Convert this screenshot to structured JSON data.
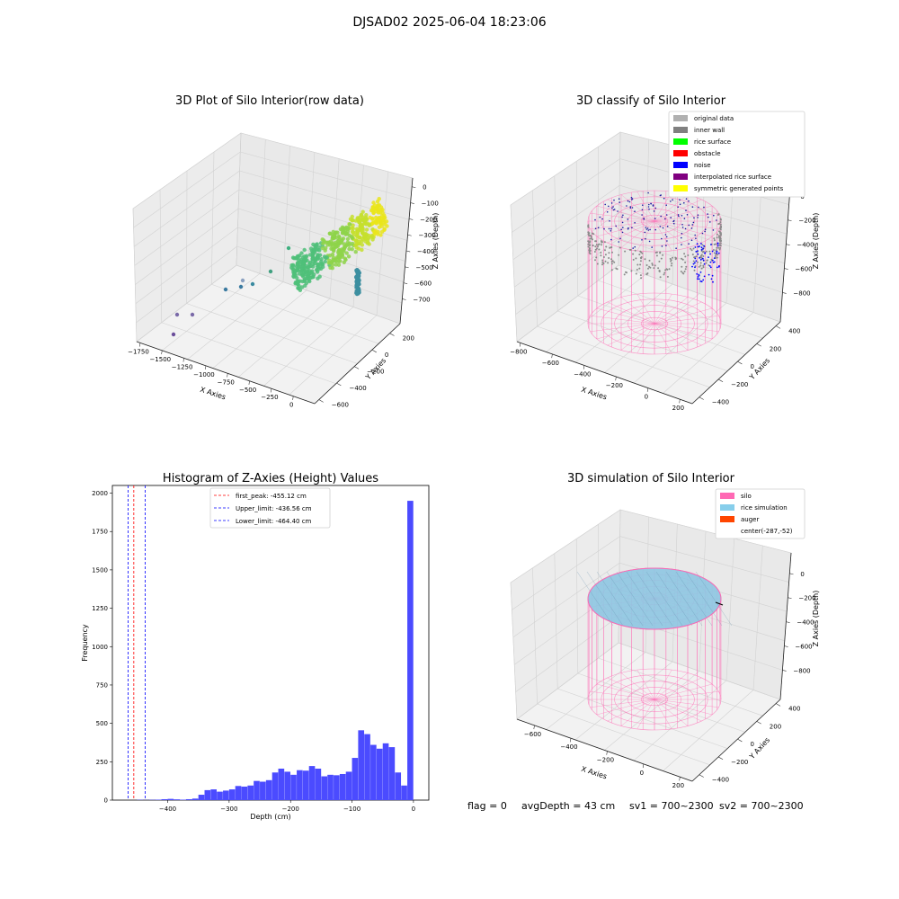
{
  "suptitle": "DJSAD02 2025-06-04 18:23:06",
  "panel1": {
    "title": "3D Plot of Silo Interior(row data)",
    "xlabel": "X Axies",
    "ylabel": "Y Axies",
    "zlabel": "Z Axies (Depth)",
    "xticks": [
      "−1750",
      "−1500",
      "−1250",
      "−1000",
      "−750",
      "−500",
      "−250",
      "0"
    ],
    "yticks": [
      "−600",
      "−400",
      "−200",
      "0",
      "200"
    ],
    "zticks": [
      "0",
      "−100",
      "−200",
      "−300",
      "−400",
      "−500",
      "−600",
      "−700"
    ]
  },
  "panel2": {
    "title": "3D classify of Silo Interior",
    "xlabel": "X Axies",
    "ylabel": "Y Axies",
    "zlabel": "Z Axies (Depth)",
    "xticks": [
      "−800",
      "−600",
      "−400",
      "−200",
      "0",
      "200"
    ],
    "yticks": [
      "−400",
      "−200",
      "0",
      "200",
      "400"
    ],
    "zticks": [
      "0",
      "−200",
      "−400",
      "−600",
      "−800"
    ],
    "legend": [
      {
        "label": "original data",
        "color": "#b0b0b0"
      },
      {
        "label": "inner wall",
        "color": "#808080"
      },
      {
        "label": "rice surface",
        "color": "#00ff00"
      },
      {
        "label": "obstacle",
        "color": "#ff0000"
      },
      {
        "label": "noise",
        "color": "#0000ff"
      },
      {
        "label": "interpolated rice surface",
        "color": "#800080"
      },
      {
        "label": "symmetric generated points",
        "color": "#ffff00"
      }
    ]
  },
  "panel4": {
    "title": "3D simulation of Silo Interior",
    "xlabel": "X Axies",
    "ylabel": "Y Axies",
    "zlabel": "Z Axies (Depth)",
    "xticks": [
      "−600",
      "−400",
      "−200",
      "0",
      "200"
    ],
    "yticks": [
      "−400",
      "−200",
      "0",
      "200",
      "400"
    ],
    "zticks": [
      "0",
      "−200",
      "−400",
      "−600",
      "−800"
    ],
    "legend": [
      {
        "label": "silo",
        "color": "#ff69b4"
      },
      {
        "label": "rice simulation",
        "color": "#87ceeb"
      },
      {
        "label": "auger",
        "color": "#ff4500"
      },
      {
        "label": "center(-287,-52)",
        "color": ""
      }
    ]
  },
  "footer": {
    "flag": "flag = 0",
    "avg": "avgDepth = 43 cm",
    "sv1": "sv1 = 700~2300",
    "sv2": "sv2 = 700~2300"
  },
  "chart_data": [
    {
      "type": "scatter",
      "title": "3D Plot of Silo Interior(row data)",
      "xlabel": "X Axies",
      "ylabel": "Y Axies",
      "zlabel": "Z Axies (Depth)"
    },
    {
      "type": "scatter",
      "title": "3D classify of Silo Interior",
      "legend": [
        "original data",
        "inner wall",
        "rice surface",
        "obstacle",
        "noise",
        "interpolated rice surface",
        "symmetric generated points"
      ]
    },
    {
      "type": "bar",
      "title": "Histogram of Z-Axies (Height) Values",
      "xlabel": "Depth (cm)",
      "ylabel": "Frequency",
      "xlim": [
        -490,
        25
      ],
      "ylim": [
        0,
        2050
      ],
      "bar_color": "#4b4bff",
      "xticks": [
        -400,
        -300,
        -200,
        -100,
        0
      ],
      "yticks": [
        0,
        250,
        500,
        750,
        1000,
        1250,
        1500,
        1750,
        2000
      ],
      "bin_width": 10,
      "bins_left": [
        -450,
        -440,
        -430,
        -420,
        -410,
        -400,
        -390,
        -380,
        -370,
        -360,
        -350,
        -340,
        -330,
        -320,
        -310,
        -300,
        -290,
        -280,
        -270,
        -260,
        -250,
        -240,
        -230,
        -220,
        -210,
        -200,
        -190,
        -180,
        -170,
        -160,
        -150,
        -140,
        -130,
        -120,
        -110,
        -100,
        -90,
        -80,
        -70,
        -60,
        -50,
        -40,
        -30,
        -20,
        -10
      ],
      "values": [
        2,
        1,
        2,
        3,
        6,
        8,
        5,
        3,
        6,
        10,
        35,
        65,
        70,
        55,
        62,
        70,
        92,
        88,
        95,
        125,
        120,
        130,
        180,
        205,
        185,
        165,
        195,
        192,
        222,
        205,
        155,
        165,
        162,
        170,
        185,
        275,
        455,
        430,
        360,
        335,
        370,
        345,
        180,
        95,
        1950
      ],
      "lines": [
        {
          "label": "first_peak: -455.12 cm",
          "x": -455.12,
          "color": "#ff0000"
        },
        {
          "label": "Upper_limit: -436.56 cm",
          "x": -436.56,
          "color": "#0000ff"
        },
        {
          "label": "Lower_limit: -464.40 cm",
          "x": -464.4,
          "color": "#0000ff"
        }
      ]
    },
    {
      "type": "scatter",
      "title": "3D simulation of Silo Interior",
      "legend": [
        "silo",
        "rice simulation",
        "auger",
        "center(-287,-52)"
      ]
    }
  ]
}
